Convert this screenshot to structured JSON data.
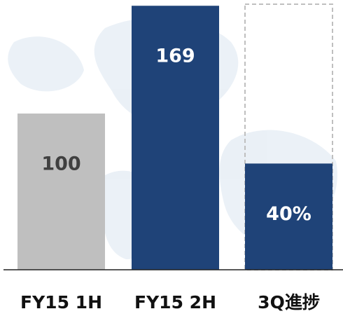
{
  "chart_data": {
    "type": "bar",
    "categories": [
      "FY15 1H",
      "FY15 2H",
      "3Q進捗"
    ],
    "values": [
      100,
      169,
      40
    ],
    "value_labels": [
      "100",
      "169",
      "40%"
    ],
    "colors": [
      "#bfbfbf",
      "#1f4378",
      "#1f4378"
    ],
    "label_colors": [
      "#404040",
      "#ffffff",
      "#ffffff"
    ],
    "bar_axes": [
      "y",
      "y",
      "y2"
    ],
    "ylim": [
      0,
      170
    ],
    "y2lim": [
      0,
      100
    ]
  }
}
